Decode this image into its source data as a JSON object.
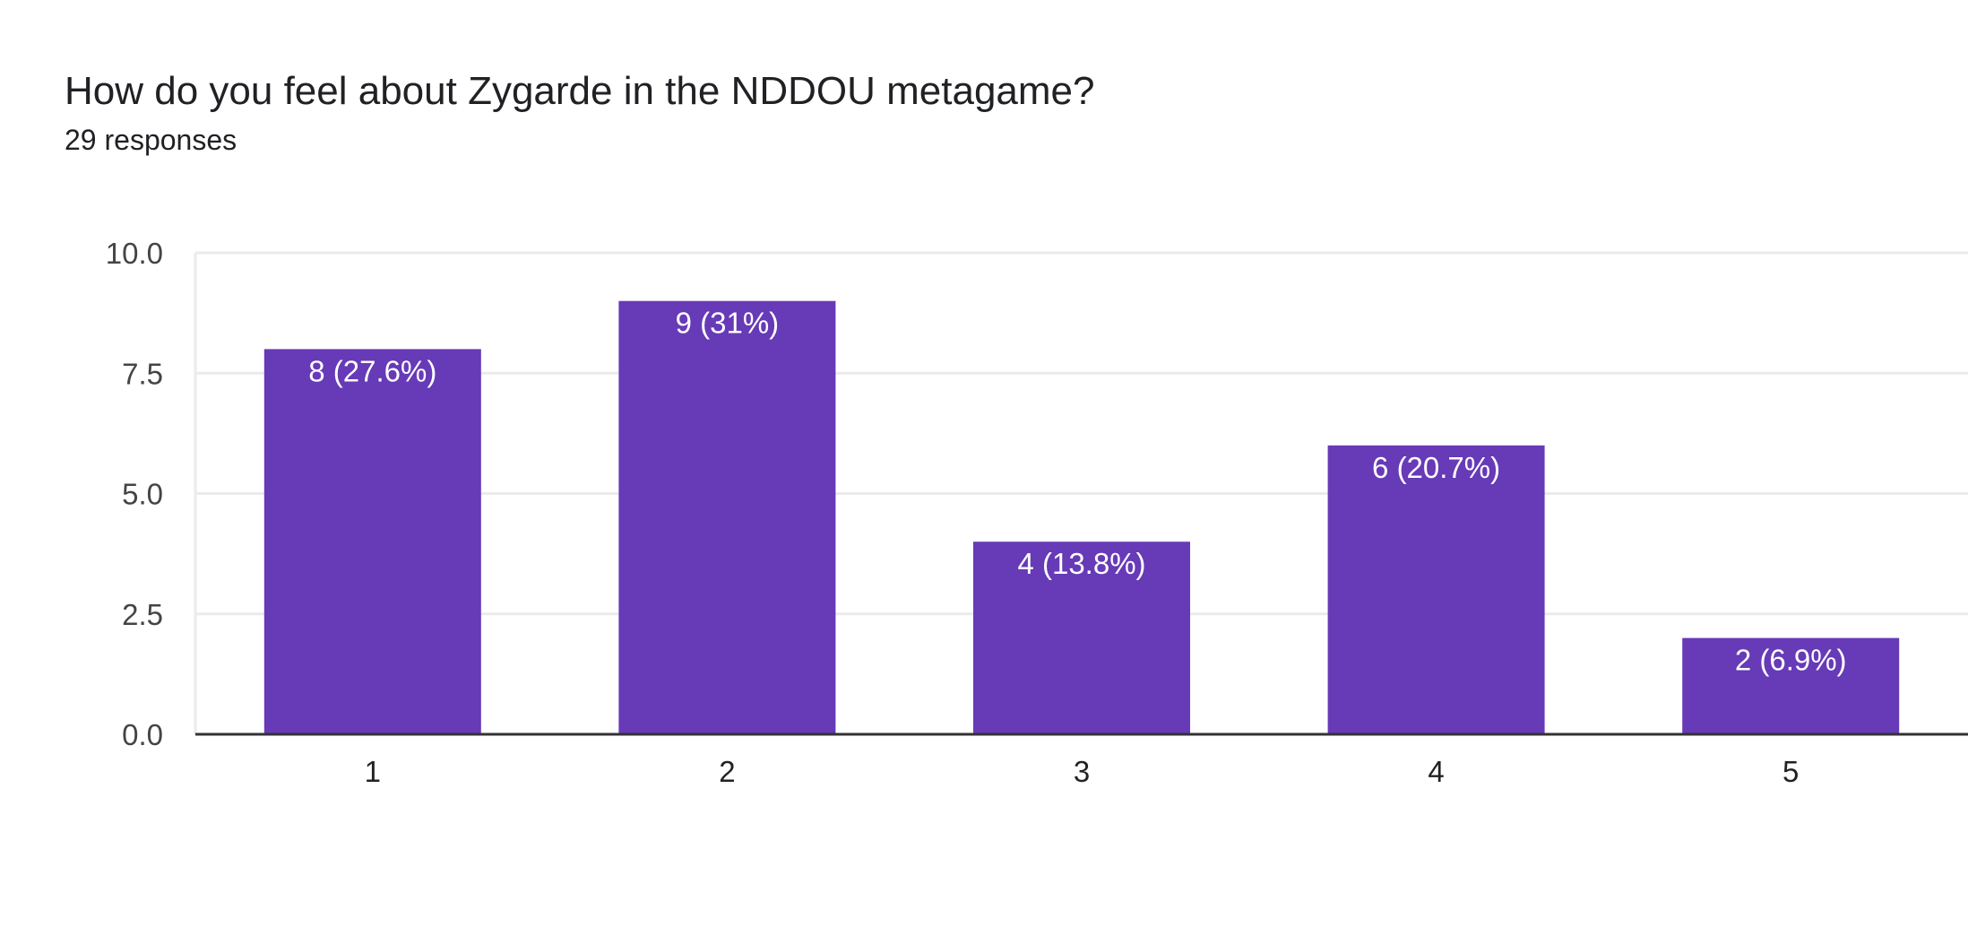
{
  "header": {
    "title": "How do you feel about Zygarde in the NDDOU metagame?",
    "subtitle": "29 responses"
  },
  "colors": {
    "bar": "#673ab7",
    "grid": "#ebebeb",
    "axis": "#333333"
  },
  "chart_data": {
    "type": "bar",
    "title": "How do you feel about Zygarde in the NDDOU metagame?",
    "subtitle": "29 responses",
    "categories": [
      "1",
      "2",
      "3",
      "4",
      "5"
    ],
    "values": [
      8,
      9,
      4,
      6,
      2
    ],
    "data_labels": [
      "8 (27.6%)",
      "9 (31%)",
      "4 (13.8%)",
      "6 (20.7%)",
      "2 (6.9%)"
    ],
    "yticks": [
      "0.0",
      "2.5",
      "5.0",
      "7.5",
      "10.0"
    ],
    "ylim": [
      0,
      10
    ],
    "grid": true,
    "legend": "none",
    "xlabel": "",
    "ylabel": ""
  }
}
